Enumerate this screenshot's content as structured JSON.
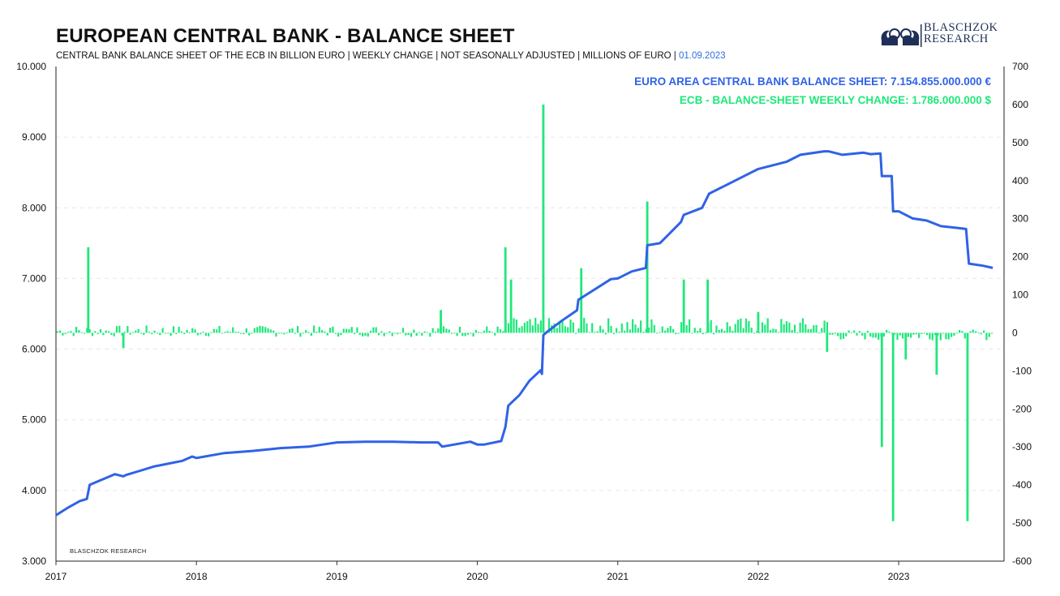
{
  "header": {
    "title": "EUROPEAN CENTRAL BANK - BALANCE SHEET",
    "subtitle": "CENTRAL BANK BALANCE SHEET OF THE ECB IN BILLION EURO | WEEKLY CHANGE | NOT SEASONALLY ADJUSTED | MILLIONS OF EURO |",
    "date": "01.09.2023"
  },
  "logo": {
    "line1": "BLASCHZOK",
    "line2": "RESEARCH",
    "icon": "dragon-emblem-icon",
    "color": "#1e2f58"
  },
  "watermark": "BLASCHZOK  RESEARCH",
  "colors": {
    "balance_line": "#2f62e6",
    "weekly_bars": "#1ee87a",
    "grid": "#e6e6e6"
  },
  "chart_data": {
    "type": "line+bar",
    "legend": [
      {
        "label": "EURO AREA CENTRAL BANK BALANCE SHEET: 7.154.855.000.000 €",
        "color": "#2f62e6"
      },
      {
        "label": "ECB - BALANCE-SHEET WEEKLY CHANGE: 1.786.000.000 $",
        "color": "#1ee87a"
      }
    ],
    "x_axis": {
      "range": [
        2017.0,
        2023.75
      ],
      "ticks": [
        "2017",
        "2018",
        "2019",
        "2020",
        "2021",
        "2022",
        "2023"
      ]
    },
    "y_left": {
      "range": [
        3000,
        10000
      ],
      "ticks": [
        "3.000",
        "4.000",
        "5.000",
        "6.000",
        "7.000",
        "8.000",
        "9.000",
        "10.000"
      ]
    },
    "y_right": {
      "range": [
        -600,
        700
      ],
      "ticks": [
        "700",
        "600",
        "500",
        "400",
        "300",
        "200",
        "100",
        "0",
        "-100",
        "-200",
        "-300",
        "-400",
        "-500",
        "-600"
      ]
    },
    "grid": "dashed horizontal",
    "legend_position": "top-right",
    "balance_sheet": {
      "x": [
        2017.0,
        2017.08,
        2017.17,
        2017.22,
        2017.24,
        2017.3,
        2017.42,
        2017.48,
        2017.5,
        2017.6,
        2017.7,
        2017.75,
        2017.9,
        2017.97,
        2018.0,
        2018.2,
        2018.4,
        2018.6,
        2018.8,
        2018.9,
        2019.0,
        2019.2,
        2019.4,
        2019.6,
        2019.72,
        2019.75,
        2019.95,
        2020.0,
        2020.05,
        2020.17,
        2020.2,
        2020.22,
        2020.3,
        2020.37,
        2020.45,
        2020.46,
        2020.47,
        2020.5,
        2020.6,
        2020.71,
        2020.72,
        2020.8,
        2020.95,
        2021.0,
        2021.1,
        2021.2,
        2021.21,
        2021.3,
        2021.45,
        2021.47,
        2021.6,
        2021.65,
        2021.8,
        2021.95,
        2022.0,
        2022.2,
        2022.3,
        2022.47,
        2022.5,
        2022.6,
        2022.75,
        2022.8,
        2022.87,
        2022.88,
        2022.95,
        2022.96,
        2023.0,
        2023.1,
        2023.2,
        2023.3,
        2023.4,
        2023.48,
        2023.5,
        2023.6,
        2023.67
      ],
      "y": [
        3650,
        3750,
        3850,
        3880,
        4080,
        4130,
        4230,
        4200,
        4220,
        4280,
        4340,
        4360,
        4420,
        4480,
        4460,
        4530,
        4560,
        4600,
        4620,
        4650,
        4680,
        4690,
        4690,
        4680,
        4680,
        4620,
        4690,
        4650,
        4650,
        4700,
        4900,
        5200,
        5350,
        5550,
        5700,
        5650,
        6200,
        6250,
        6400,
        6550,
        6700,
        6800,
        6990,
        7000,
        7100,
        7150,
        7470,
        7500,
        7800,
        7900,
        8000,
        8200,
        8350,
        8500,
        8550,
        8650,
        8750,
        8800,
        8800,
        8750,
        8780,
        8760,
        8770,
        8450,
        8450,
        7950,
        7950,
        7850,
        7820,
        7740,
        7720,
        7700,
        7210,
        7180,
        7150
      ]
    },
    "weekly_change": {
      "spikes": [
        {
          "x": 2017.23,
          "value": 225
        },
        {
          "x": 2017.48,
          "value": -40
        },
        {
          "x": 2019.74,
          "value": 60
        },
        {
          "x": 2020.2,
          "value": 225
        },
        {
          "x": 2020.24,
          "value": 140
        },
        {
          "x": 2020.47,
          "value": 600
        },
        {
          "x": 2020.74,
          "value": 170
        },
        {
          "x": 2021.21,
          "value": 345
        },
        {
          "x": 2021.47,
          "value": 140
        },
        {
          "x": 2021.64,
          "value": 140
        },
        {
          "x": 2022.0,
          "value": 55
        },
        {
          "x": 2022.49,
          "value": -50
        },
        {
          "x": 2022.88,
          "value": -300
        },
        {
          "x": 2022.96,
          "value": -495
        },
        {
          "x": 2023.05,
          "value": -70
        },
        {
          "x": 2023.27,
          "value": -110
        },
        {
          "x": 2023.49,
          "value": -495
        }
      ]
    }
  }
}
